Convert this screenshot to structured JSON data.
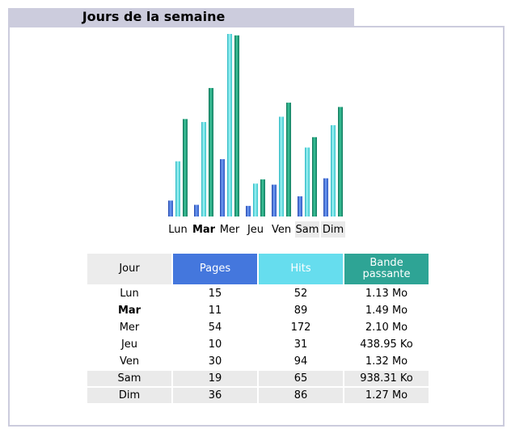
{
  "title": "Jours de la semaine",
  "colors": {
    "pages": "#4477dd",
    "hits": "#66ddee",
    "bandwidth": "#2ea495",
    "header_bar": "#ccccdd",
    "weekend": "#eaeaea"
  },
  "table": {
    "headers": {
      "day": "Jour",
      "pages": "Pages",
      "hits": "Hits",
      "bandwidth": "Bande passante"
    },
    "rows": [
      {
        "day": "Lun",
        "pages": "15",
        "hits": "52",
        "bandwidth": "1.13 Mo",
        "bold": false,
        "weekend": false
      },
      {
        "day": "Mar",
        "pages": "11",
        "hits": "89",
        "bandwidth": "1.49 Mo",
        "bold": true,
        "weekend": false
      },
      {
        "day": "Mer",
        "pages": "54",
        "hits": "172",
        "bandwidth": "2.10 Mo",
        "bold": false,
        "weekend": false
      },
      {
        "day": "Jeu",
        "pages": "10",
        "hits": "31",
        "bandwidth": "438.95 Ko",
        "bold": false,
        "weekend": false
      },
      {
        "day": "Ven",
        "pages": "30",
        "hits": "94",
        "bandwidth": "1.32 Mo",
        "bold": false,
        "weekend": false
      },
      {
        "day": "Sam",
        "pages": "19",
        "hits": "65",
        "bandwidth": "938.31 Ko",
        "bold": false,
        "weekend": true
      },
      {
        "day": "Dim",
        "pages": "36",
        "hits": "86",
        "bandwidth": "1.27 Mo",
        "bold": false,
        "weekend": true
      }
    ]
  },
  "chart_data": {
    "type": "bar",
    "categories": [
      "Lun",
      "Mar",
      "Mer",
      "Jeu",
      "Ven",
      "Sam",
      "Dim"
    ],
    "series": [
      {
        "values": [
          15,
          11,
          54,
          10,
          30,
          19,
          36
        ]
      },
      {
        "values": [
          52,
          89,
          172,
          31,
          94,
          65,
          86
        ]
      },
      {
        "values": [
          1.13,
          1.49,
          2.1,
          0.43,
          1.32,
          0.92,
          1.27
        ]
      }
    ],
    "ylim": [
      0,
      172
    ],
    "grid": false,
    "legend": "none"
  }
}
